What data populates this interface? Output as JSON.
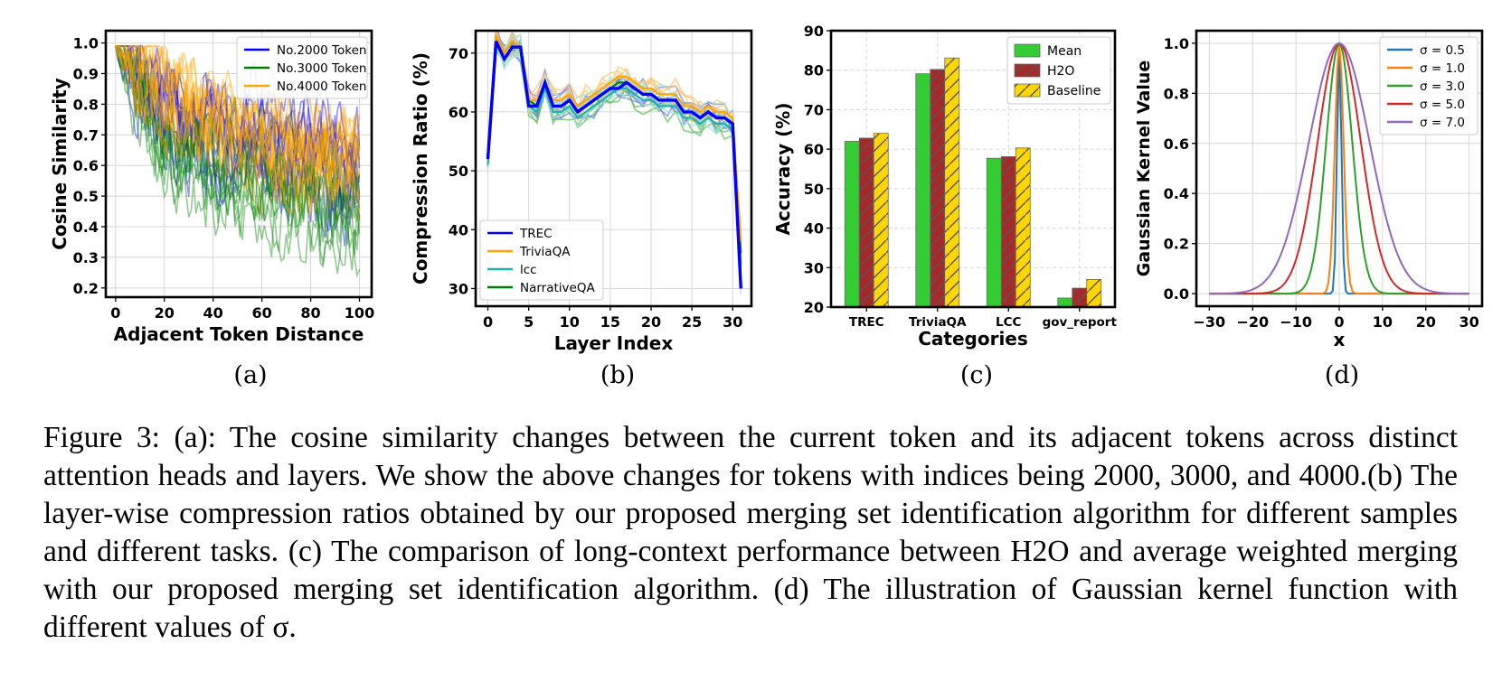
{
  "figure": {
    "panel_labels": [
      "(a)",
      "(b)",
      "(c)",
      "(d)"
    ],
    "caption": "Figure 3: (a): The cosine similarity changes between the current token and its adjacent tokens across distinct attention heads and layers. We show the above changes for tokens with indices being 2000, 3000, and 4000.(b) The layer-wise compression ratios obtained by our proposed merging set identification algorithm for different samples and different tasks. (c) The comparison of long-context performance between H2O and average weighted merging with our proposed merging set identification algorithm. (d) The illustration of Gaussian kernel function with different values of σ."
  },
  "chart_data": [
    {
      "panel": "(a)",
      "type": "line",
      "xlabel": "Adjacent Token Distance",
      "ylabel": "Cosine Similarity",
      "xlim": [
        -4,
        105
      ],
      "ylim": [
        0.17,
        1.04
      ],
      "xticks": [
        0,
        20,
        40,
        60,
        80,
        100
      ],
      "yticks": [
        0.2,
        0.3,
        0.4,
        0.5,
        0.6,
        0.7,
        0.8,
        0.9,
        1.0
      ],
      "grid": true,
      "legend": "top-right",
      "series": [
        {
          "name": "No.2000 Token",
          "color": "#0000ff",
          "trend": [
            1.0,
            0.78,
            0.72,
            0.66,
            0.62,
            0.58
          ],
          "spread": [
            0.05,
            0.12,
            0.13,
            0.14,
            0.15,
            0.15
          ]
        },
        {
          "name": "No.3000 Token",
          "color": "#008000",
          "trend": [
            1.0,
            0.66,
            0.6,
            0.55,
            0.5,
            0.47
          ],
          "spread": [
            0.05,
            0.12,
            0.13,
            0.14,
            0.15,
            0.15
          ]
        },
        {
          "name": "No.4000 Token",
          "color": "#ffa500",
          "trend": [
            1.0,
            0.82,
            0.74,
            0.68,
            0.64,
            0.62
          ],
          "spread": [
            0.05,
            0.09,
            0.1,
            0.11,
            0.12,
            0.13
          ]
        }
      ]
    },
    {
      "panel": "(b)",
      "type": "line",
      "xlabel": "Layer Index",
      "ylabel": "Compression Ratio (%)",
      "xlim": [
        -1.5,
        32.3
      ],
      "ylim": [
        27,
        73.8
      ],
      "xticks": [
        0,
        5,
        10,
        15,
        20,
        25,
        30
      ],
      "yticks": [
        30,
        40,
        50,
        60,
        70
      ],
      "grid": true,
      "legend": "bottom-left",
      "x": [
        0,
        1,
        2,
        3,
        4,
        5,
        6,
        7,
        8,
        9,
        10,
        11,
        12,
        13,
        14,
        15,
        16,
        17,
        18,
        19,
        20,
        21,
        22,
        23,
        24,
        25,
        26,
        27,
        28,
        29,
        30,
        31
      ],
      "series": [
        {
          "name": "TREC",
          "color": "#0000ff",
          "values": [
            52,
            72,
            69,
            71,
            71,
            61,
            61,
            65,
            61,
            61,
            62,
            60,
            61,
            62,
            63,
            64,
            64,
            65,
            64,
            63,
            63,
            62,
            62,
            62,
            60,
            60,
            59,
            60,
            59,
            59,
            58,
            30
          ]
        },
        {
          "name": "TriviaQA",
          "color": "#ffa500",
          "values": [
            52,
            73,
            70,
            72,
            71,
            62,
            62,
            65,
            62,
            62,
            63,
            61,
            62,
            63,
            64,
            65,
            66,
            66,
            65,
            64,
            64,
            63,
            63,
            63,
            61,
            61,
            60,
            61,
            60,
            60,
            59,
            38
          ]
        },
        {
          "name": "lcc",
          "color": "#20b2aa",
          "values": [
            51,
            72,
            69,
            71,
            71,
            61,
            60,
            64,
            60,
            60,
            61,
            59,
            60,
            61,
            62,
            63,
            64,
            64,
            63,
            62,
            62,
            61,
            61,
            61,
            59,
            59,
            58,
            59,
            58,
            58,
            57,
            34
          ]
        },
        {
          "name": "NarrativeQA",
          "color": "#008000",
          "values": [
            53,
            73,
            70,
            72,
            71,
            62,
            61,
            65,
            61,
            61,
            62,
            60,
            61,
            62,
            63,
            64,
            65,
            65,
            64,
            63,
            63,
            62,
            62,
            62,
            60,
            60,
            59,
            60,
            59,
            59,
            58,
            36
          ]
        }
      ]
    },
    {
      "panel": "(c)",
      "type": "bar",
      "xlabel": "Categories",
      "ylabel": "Accuracy (%)",
      "ylim": [
        20,
        90
      ],
      "yticks": [
        20,
        30,
        40,
        50,
        60,
        70,
        80,
        90
      ],
      "grid": true,
      "legend": "top-right",
      "categories": [
        "TREC",
        "TriviaQA",
        "LCC",
        "gov_report"
      ],
      "series": [
        {
          "name": "Mean",
          "color": "#33cc33",
          "values": [
            62.0,
            79.1,
            57.7,
            22.3
          ]
        },
        {
          "name": "H2O",
          "color": "#a52a2a",
          "values": [
            62.8,
            80.2,
            58.1,
            24.8
          ]
        },
        {
          "name": "Baseline",
          "color": "#ffd700",
          "values": [
            64.0,
            83.1,
            60.3,
            27.0
          ]
        }
      ]
    },
    {
      "panel": "(d)",
      "type": "line",
      "xlabel": "x",
      "ylabel": "Gaussian Kernel Value",
      "xlim": [
        -33,
        33
      ],
      "ylim": [
        -0.05,
        1.05
      ],
      "xticks": [
        -30,
        -20,
        -10,
        0,
        10,
        20,
        30
      ],
      "yticks": [
        0.0,
        0.2,
        0.4,
        0.6,
        0.8,
        1.0
      ],
      "grid": true,
      "legend": "top-right",
      "series": [
        {
          "name": "σ = 0.5",
          "sigma": 0.5,
          "color": "#1f77b4"
        },
        {
          "name": "σ = 1.0",
          "sigma": 1.0,
          "color": "#ff7f0e"
        },
        {
          "name": "σ = 3.0",
          "sigma": 3.0,
          "color": "#2ca02c"
        },
        {
          "name": "σ = 5.0",
          "sigma": 5.0,
          "color": "#d62728"
        },
        {
          "name": "σ = 7.0",
          "sigma": 7.0,
          "color": "#9467bd"
        }
      ]
    }
  ]
}
